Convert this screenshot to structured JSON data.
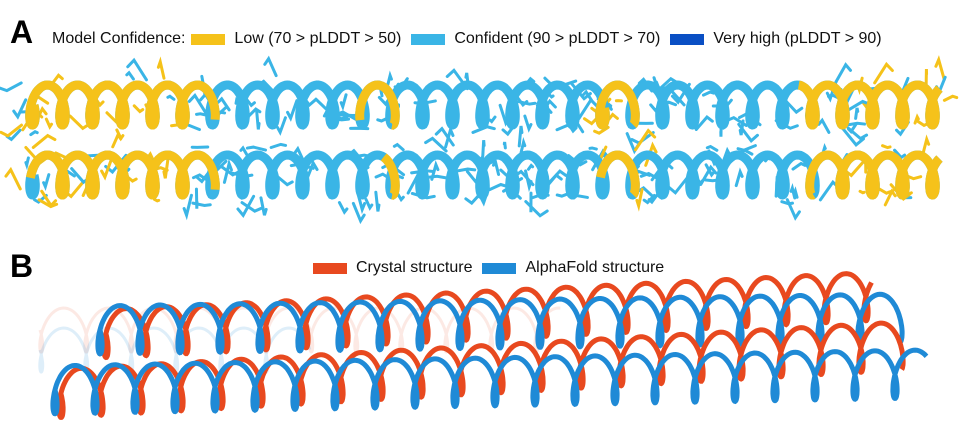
{
  "panels": [
    {
      "label": "A",
      "legend_title": "Model Confidence:",
      "legend": [
        {
          "label": "Low (70 > pLDDT > 50)",
          "color": "#f5c21a"
        },
        {
          "label": "Confident (90 > pLDDT > 70)",
          "color": "#3ab5e6"
        },
        {
          "label": "Very high (pLDDT > 90)",
          "color": "#0a4fc4"
        }
      ]
    },
    {
      "label": "B",
      "legend": [
        {
          "label": "Crystal structure",
          "color": "#e8491f"
        },
        {
          "label": "AlphaFold structure",
          "color": "#1f8ad6"
        }
      ]
    }
  ]
}
